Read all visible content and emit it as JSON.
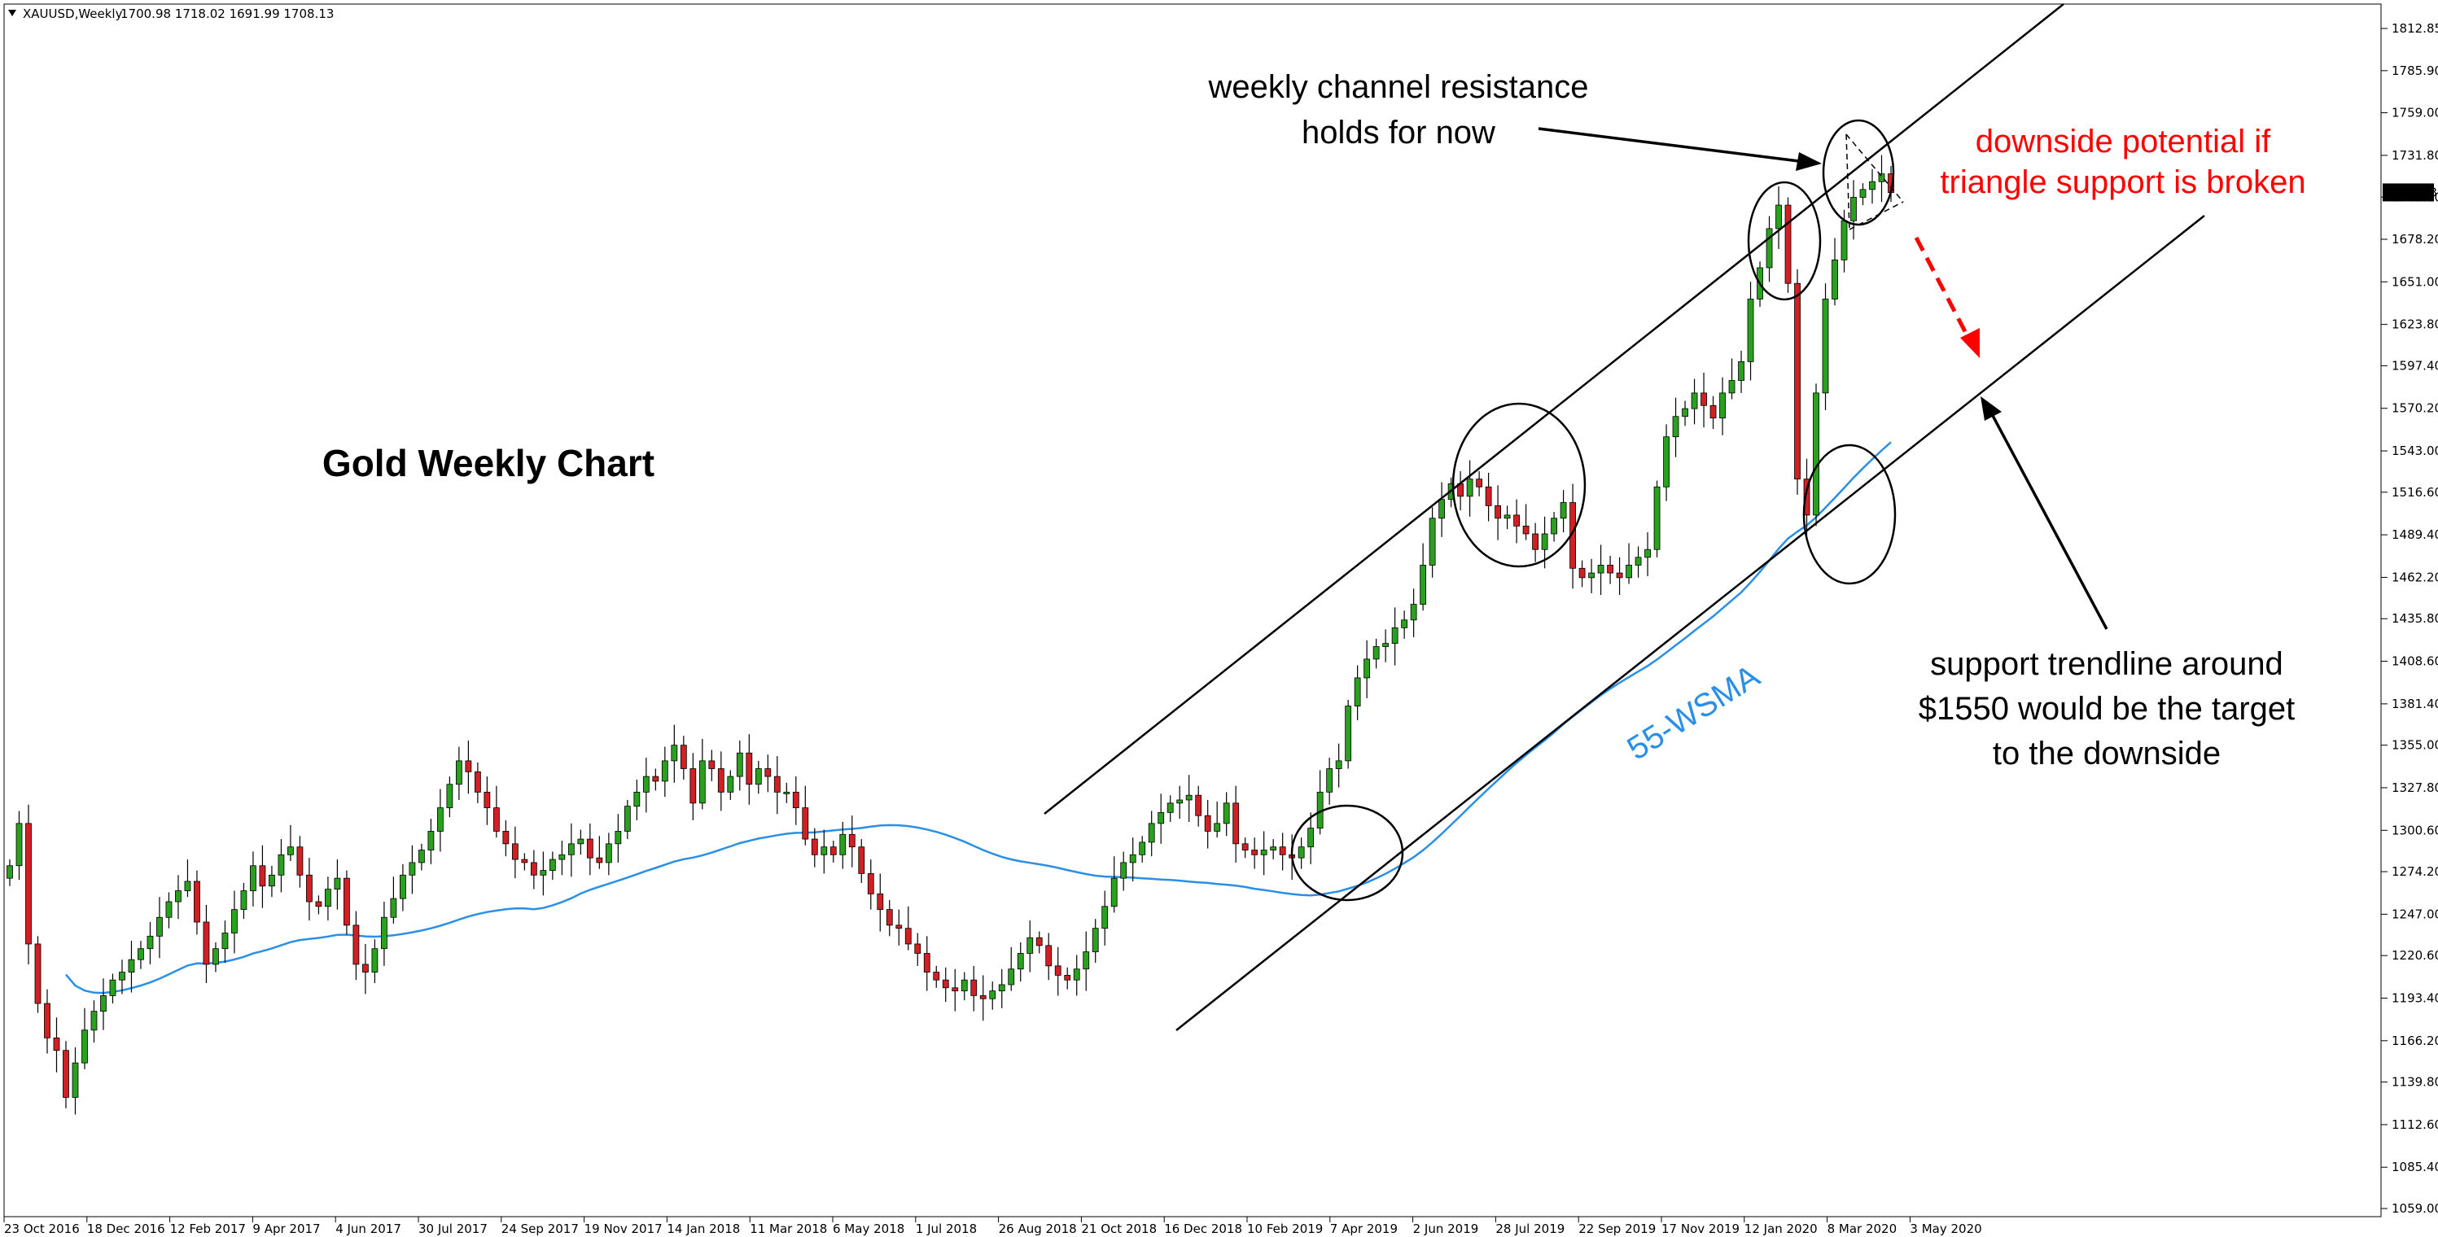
{
  "header": {
    "symbol": "XAUUSD,Weekly",
    "ohlc": "1700.98 1718.02 1691.99 1708.13"
  },
  "colors": {
    "bull": "#2aa11e",
    "bear": "#d11f24",
    "ma": "#2a8fe6",
    "annotation_red": "#ff0000",
    "line": "#000000"
  },
  "chart_data": {
    "type": "candlestick",
    "title": "Gold Weekly Chart",
    "y_ticks": [
      "1812.85",
      "1785.90",
      "1759.00",
      "1731.80",
      "1705.10",
      "1678.20",
      "1651.00",
      "1623.80",
      "1597.40",
      "1570.20",
      "1543.00",
      "1516.60",
      "1489.40",
      "1462.20",
      "1435.80",
      "1408.60",
      "1381.40",
      "1355.00",
      "1327.80",
      "1300.60",
      "1274.20",
      "1247.00",
      "1220.60",
      "1193.40",
      "1166.20",
      "1139.80",
      "1112.60",
      "1085.40",
      "1059.00"
    ],
    "ylim": [
      1059,
      1812.85
    ],
    "current_price": "1708.13",
    "x_ticks": [
      "23 Oct 2016",
      "18 Dec 2016",
      "12 Feb 2017",
      "9 Apr 2017",
      "4 Jun 2017",
      "30 Jul 2017",
      "24 Sep 2017",
      "19 Nov 2017",
      "14 Jan 2018",
      "11 Mar 2018",
      "6 May 2018",
      "1 Jul 2018",
      "26 Aug 2018",
      "21 Oct 2018",
      "16 Dec 2018",
      "10 Feb 2019",
      "7 Apr 2019",
      "2 Jun 2019",
      "28 Jul 2019",
      "22 Sep 2019",
      "17 Nov 2019",
      "12 Jan 2020",
      "8 Mar 2020",
      "3 May 2020"
    ],
    "candles_close": [
      1278,
      1305,
      1228,
      1190,
      1168,
      1160,
      1130,
      1152,
      1173,
      1185,
      1195,
      1205,
      1210,
      1218,
      1225,
      1233,
      1245,
      1255,
      1262,
      1268,
      1242,
      1215,
      1225,
      1235,
      1250,
      1262,
      1278,
      1265,
      1272,
      1285,
      1290,
      1272,
      1255,
      1252,
      1263,
      1270,
      1240,
      1215,
      1210,
      1225,
      1245,
      1257,
      1272,
      1280,
      1288,
      1300,
      1315,
      1330,
      1345,
      1338,
      1325,
      1315,
      1300,
      1292,
      1282,
      1280,
      1272,
      1275,
      1282,
      1285,
      1292,
      1295,
      1283,
      1280,
      1292,
      1300,
      1316,
      1325,
      1335,
      1332,
      1345,
      1355,
      1340,
      1318,
      1345,
      1340,
      1325,
      1335,
      1350,
      1330,
      1340,
      1335,
      1325,
      1325,
      1315,
      1295,
      1285,
      1290,
      1285,
      1298,
      1290,
      1273,
      1260,
      1250,
      1240,
      1238,
      1228,
      1222,
      1210,
      1205,
      1200,
      1198,
      1205,
      1195,
      1193,
      1198,
      1202,
      1212,
      1222,
      1232,
      1227,
      1214,
      1208,
      1205,
      1212,
      1223,
      1238,
      1252,
      1270,
      1280,
      1285,
      1293,
      1305,
      1312,
      1318,
      1320,
      1323,
      1310,
      1300,
      1305,
      1318,
      1292,
      1288,
      1285,
      1288,
      1290,
      1285,
      1283,
      1290,
      1302,
      1325,
      1340,
      1345,
      1380,
      1398,
      1410,
      1418,
      1420,
      1430,
      1435,
      1445,
      1470,
      1500,
      1512,
      1522,
      1514,
      1525,
      1520,
      1508,
      1500,
      1502,
      1495,
      1490,
      1480,
      1490,
      1500,
      1510,
      1468,
      1462,
      1465,
      1470,
      1465,
      1462,
      1470,
      1475,
      1480,
      1520,
      1552,
      1565,
      1570,
      1580,
      1572,
      1564,
      1580,
      1588,
      1600,
      1640,
      1660,
      1685,
      1700,
      1650,
      1525,
      1502,
      1580,
      1640,
      1665,
      1690,
      1705,
      1710,
      1715,
      1720,
      1708
    ],
    "moving_average": {
      "name": "55-WSMA"
    },
    "annotations": [
      {
        "lines": [
          "weekly channel resistance",
          "holds for now"
        ]
      },
      {
        "lines": [
          "downside potential if",
          "triangle support is broken"
        ]
      },
      {
        "lines": [
          "support trendline around",
          "$1550 would be the target",
          "to the downside"
        ]
      }
    ]
  }
}
